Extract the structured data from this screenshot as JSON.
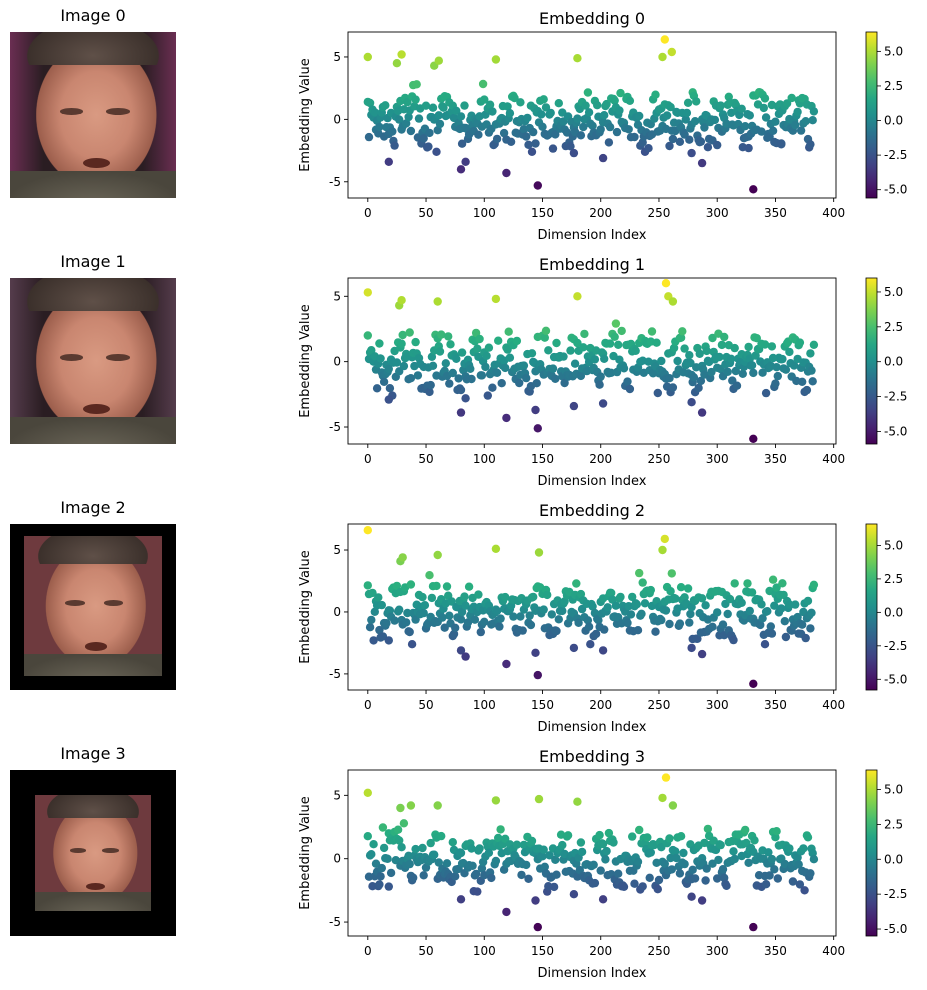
{
  "panels": [
    {
      "image_title": "Image 0",
      "background": "#6a2e52",
      "crop": "full",
      "colorbar_ticks": [
        "5.0",
        "2.5",
        "0.0",
        "-2.5",
        "-5.0"
      ]
    },
    {
      "image_title": "Image 1",
      "background": "#553c4c",
      "crop": "full",
      "colorbar_ticks": [
        "5.0",
        "2.5",
        "0.0",
        "-2.5",
        "-5.0"
      ]
    },
    {
      "image_title": "Image 2",
      "background": "#000000",
      "crop": "medium",
      "colorbar_ticks": [
        "5.0",
        "2.5",
        "0.0",
        "-2.5",
        "-5.0"
      ]
    },
    {
      "image_title": "Image 3",
      "background": "#000000",
      "crop": "small",
      "colorbar_ticks": [
        "5.0",
        "2.5",
        "0.0",
        "-2.5",
        "-5.0"
      ]
    }
  ],
  "chart_data": [
    {
      "type": "scatter",
      "title": "Embedding 0",
      "xlabel": "Dimension Index",
      "ylabel": "Embedding Value",
      "xlim": [
        -17,
        402
      ],
      "ylim": [
        -6.3,
        7.0
      ],
      "xticks": [
        "0",
        "50",
        "100",
        "150",
        "200",
        "250",
        "300",
        "350",
        "400"
      ],
      "yticks": [
        "-5",
        "0",
        "5"
      ],
      "colormap": "viridis",
      "clim": [
        -5.6,
        6.4
      ],
      "highlights": [
        [
          0,
          5.0
        ],
        [
          25,
          4.5
        ],
        [
          29,
          5.2
        ],
        [
          57,
          4.3
        ],
        [
          61,
          4.7
        ],
        [
          110,
          4.8
        ],
        [
          180,
          4.9
        ],
        [
          255,
          6.4
        ],
        [
          253,
          5.0
        ],
        [
          261,
          5.4
        ],
        [
          18,
          -3.4
        ],
        [
          80,
          -4.0
        ],
        [
          84,
          -3.4
        ],
        [
          119,
          -4.3
        ],
        [
          146,
          -5.3
        ],
        [
          177,
          -2.7
        ],
        [
          202,
          -3.1
        ],
        [
          278,
          -2.7
        ],
        [
          287,
          -3.5
        ],
        [
          331,
          -5.6
        ],
        [
          327,
          -2.3
        ],
        [
          355,
          -2.0
        ]
      ]
    },
    {
      "type": "scatter",
      "title": "Embedding 1",
      "xlabel": "Dimension Index",
      "ylabel": "Embedding Value",
      "xlim": [
        -17,
        402
      ],
      "ylim": [
        -6.3,
        6.4
      ],
      "xticks": [
        "0",
        "50",
        "100",
        "150",
        "200",
        "250",
        "300",
        "350",
        "400"
      ],
      "yticks": [
        "-5",
        "0",
        "5"
      ],
      "colormap": "viridis",
      "clim": [
        -5.9,
        6.0
      ],
      "highlights": [
        [
          0,
          5.3
        ],
        [
          27,
          4.3
        ],
        [
          29,
          4.7
        ],
        [
          60,
          4.6
        ],
        [
          110,
          4.8
        ],
        [
          180,
          5.0
        ],
        [
          256,
          6.0
        ],
        [
          258,
          5.0
        ],
        [
          262,
          4.6
        ],
        [
          18,
          -2.9
        ],
        [
          80,
          -3.9
        ],
        [
          84,
          -2.8
        ],
        [
          119,
          -4.3
        ],
        [
          146,
          -5.1
        ],
        [
          144,
          -3.7
        ],
        [
          177,
          -3.4
        ],
        [
          202,
          -3.2
        ],
        [
          278,
          -3.1
        ],
        [
          287,
          -3.9
        ],
        [
          331,
          -5.9
        ]
      ]
    },
    {
      "type": "scatter",
      "title": "Embedding 2",
      "xlabel": "Dimension Index",
      "ylabel": "Embedding Value",
      "xlim": [
        -17,
        402
      ],
      "ylim": [
        -6.3,
        7.1
      ],
      "xticks": [
        "0",
        "50",
        "100",
        "150",
        "200",
        "250",
        "300",
        "350",
        "400"
      ],
      "yticks": [
        "-5",
        "0",
        "5"
      ],
      "colormap": "viridis",
      "clim": [
        -5.8,
        6.6
      ],
      "highlights": [
        [
          0,
          6.6
        ],
        [
          28,
          4.1
        ],
        [
          30,
          4.4
        ],
        [
          60,
          4.6
        ],
        [
          110,
          5.1
        ],
        [
          147,
          4.8
        ],
        [
          255,
          5.9
        ],
        [
          253,
          5.0
        ],
        [
          18,
          -2.3
        ],
        [
          80,
          -3.1
        ],
        [
          84,
          -3.6
        ],
        [
          119,
          -4.2
        ],
        [
          146,
          -5.1
        ],
        [
          144,
          -3.3
        ],
        [
          177,
          -2.9
        ],
        [
          202,
          -3.1
        ],
        [
          278,
          -2.9
        ],
        [
          287,
          -3.4
        ],
        [
          331,
          -5.8
        ]
      ]
    },
    {
      "type": "scatter",
      "title": "Embedding 3",
      "xlabel": "Dimension Index",
      "ylabel": "Embedding Value",
      "xlim": [
        -17,
        402
      ],
      "ylim": [
        -6.1,
        7.0
      ],
      "xticks": [
        "0",
        "50",
        "100",
        "150",
        "200",
        "250",
        "300",
        "350",
        "400"
      ],
      "yticks": [
        "-5",
        "0",
        "5"
      ],
      "colormap": "viridis",
      "clim": [
        -5.5,
        6.4
      ],
      "highlights": [
        [
          0,
          5.2
        ],
        [
          28,
          4.0
        ],
        [
          37,
          4.2
        ],
        [
          60,
          4.2
        ],
        [
          110,
          4.6
        ],
        [
          147,
          4.7
        ],
        [
          180,
          4.5
        ],
        [
          256,
          6.4
        ],
        [
          253,
          4.8
        ],
        [
          262,
          4.2
        ],
        [
          18,
          -2.2
        ],
        [
          80,
          -3.2
        ],
        [
          119,
          -4.2
        ],
        [
          146,
          -5.4
        ],
        [
          144,
          -3.3
        ],
        [
          177,
          -2.8
        ],
        [
          202,
          -3.2
        ],
        [
          278,
          -3.0
        ],
        [
          287,
          -3.3
        ],
        [
          331,
          -5.4
        ]
      ]
    }
  ]
}
